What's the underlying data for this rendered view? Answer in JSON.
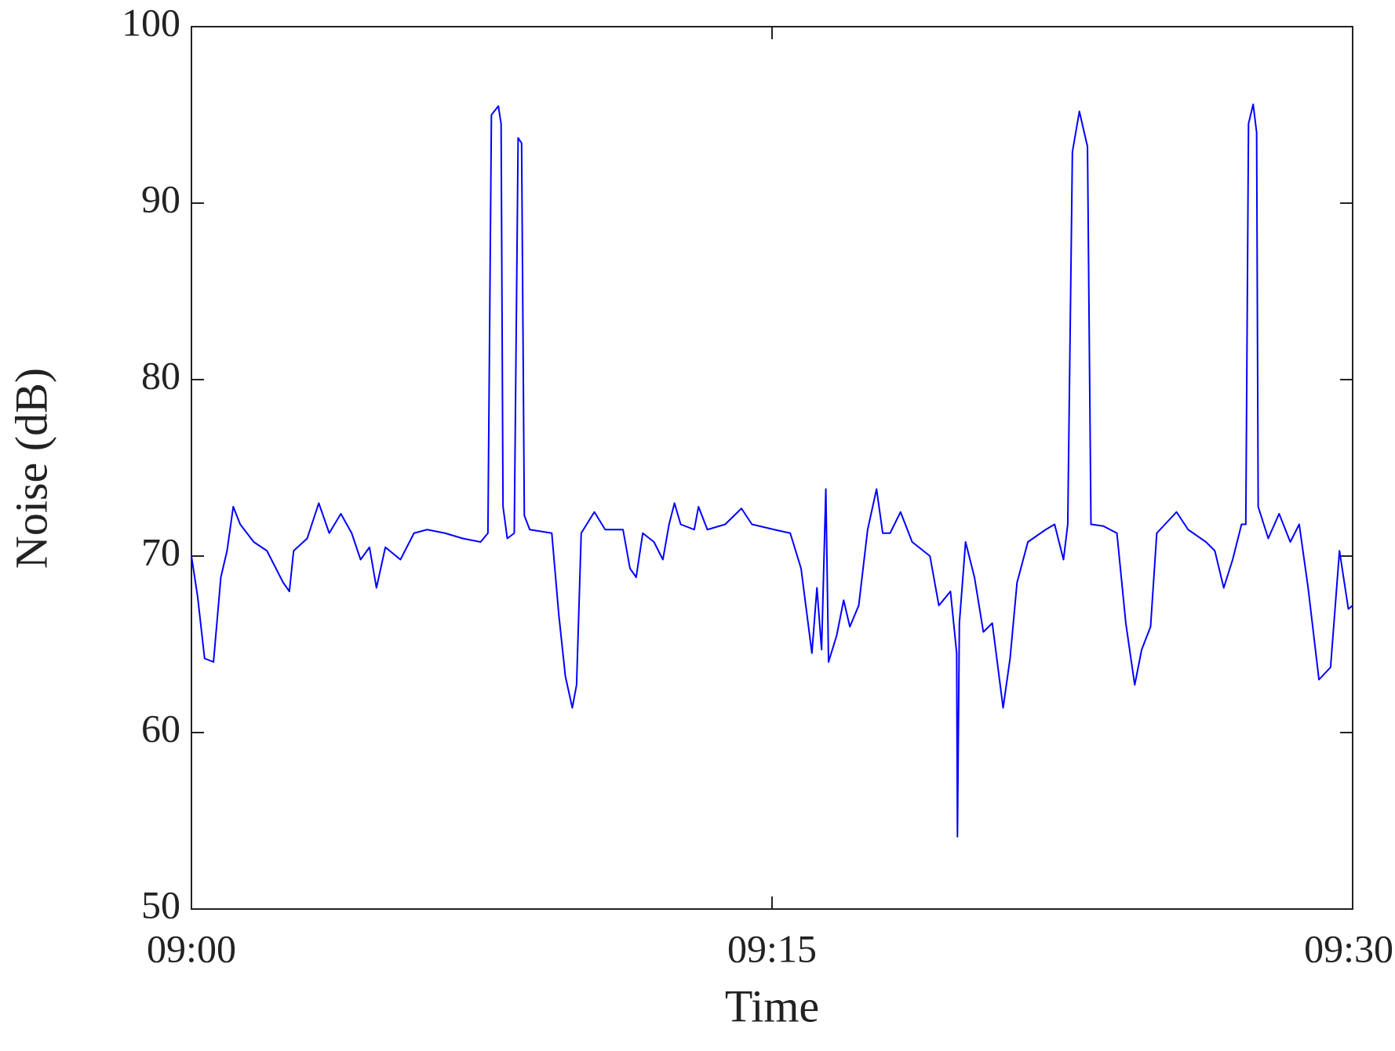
{
  "chart_data": {
    "type": "line",
    "xlabel": "Time",
    "ylabel": "Noise (dB)",
    "xlim": [
      0,
      30
    ],
    "xticks": [
      {
        "value": 0,
        "label": "09:00"
      },
      {
        "value": 15,
        "label": "09:15"
      },
      {
        "value": 30,
        "label": "09:30"
      }
    ],
    "ylim": [
      50,
      100
    ],
    "yticks": [
      50,
      60,
      70,
      80,
      90,
      100
    ],
    "grid": false,
    "series": [
      {
        "color": "#0000ff",
        "x": [
          0,
          0.16,
          0.34,
          0.57,
          0.76,
          0.92,
          1.08,
          1.26,
          1.61,
          1.95,
          2.37,
          2.53,
          2.64,
          2.99,
          3.29,
          3.56,
          3.86,
          4.14,
          4.37,
          4.6,
          4.78,
          5.01,
          5.4,
          5.75,
          6.09,
          6.55,
          7.01,
          7.47,
          7.66,
          7.75,
          7.93,
          8.0,
          8.05,
          8.16,
          8.34,
          8.44,
          8.53,
          8.6,
          8.74,
          9.31,
          9.49,
          9.66,
          9.84,
          9.95,
          10.07,
          10.41,
          10.69,
          11.15,
          11.33,
          11.49,
          11.66,
          11.95,
          12.18,
          12.34,
          12.48,
          12.64,
          12.99,
          13.1,
          13.33,
          13.79,
          14.21,
          14.48,
          15.06,
          15.47,
          15.75,
          16.03,
          16.16,
          16.28,
          16.39,
          16.46,
          16.67,
          16.85,
          17.01,
          17.24,
          17.47,
          17.7,
          17.86,
          18.05,
          18.32,
          18.62,
          19.08,
          19.31,
          19.61,
          19.77,
          19.79,
          19.84,
          20.0,
          20.23,
          20.46,
          20.69,
          20.97,
          21.15,
          21.33,
          21.61,
          22.07,
          22.3,
          22.53,
          22.64,
          22.76,
          22.94,
          23.15,
          23.24,
          23.56,
          23.91,
          24.14,
          24.37,
          24.55,
          24.78,
          24.94,
          25.45,
          25.75,
          26.21,
          26.44,
          26.67,
          26.9,
          27.13,
          27.24,
          27.31,
          27.43,
          27.52,
          27.56,
          27.82,
          28.1,
          28.39,
          28.62,
          28.85,
          29.13,
          29.43,
          29.66,
          29.89,
          30.0
        ],
        "values": [
          70.0,
          67.7,
          64.2,
          64.0,
          68.8,
          70.3,
          72.8,
          71.8,
          70.8,
          70.3,
          68.5,
          68.0,
          70.3,
          71.0,
          73.0,
          71.3,
          72.4,
          71.3,
          69.8,
          70.5,
          68.2,
          70.5,
          69.8,
          71.3,
          71.5,
          71.3,
          71.0,
          70.8,
          71.3,
          95.0,
          95.5,
          94.5,
          72.8,
          71.0,
          71.3,
          93.7,
          93.4,
          72.3,
          71.5,
          71.3,
          66.7,
          63.2,
          61.4,
          62.7,
          71.3,
          72.5,
          71.5,
          71.5,
          69.3,
          68.8,
          71.3,
          70.8,
          69.8,
          71.8,
          73.0,
          71.8,
          71.5,
          72.8,
          71.5,
          71.8,
          72.7,
          71.8,
          71.5,
          71.3,
          69.3,
          64.5,
          68.2,
          64.7,
          73.8,
          64.0,
          65.5,
          67.5,
          66.0,
          67.2,
          71.5,
          73.8,
          71.3,
          71.3,
          72.5,
          70.8,
          70.0,
          67.2,
          68.0,
          64.5,
          54.1,
          66.2,
          70.8,
          68.8,
          65.7,
          66.2,
          61.4,
          64.2,
          68.5,
          70.8,
          71.5,
          71.8,
          69.8,
          71.8,
          92.9,
          95.2,
          93.2,
          71.8,
          71.7,
          71.3,
          66.2,
          62.7,
          64.7,
          66.0,
          71.3,
          72.5,
          71.5,
          70.8,
          70.3,
          68.2,
          69.8,
          71.8,
          71.8,
          94.5,
          95.6,
          94.0,
          72.8,
          71.0,
          72.4,
          70.8,
          71.8,
          68.2,
          63.0,
          63.7,
          70.3,
          67.0,
          67.2
        ]
      }
    ]
  }
}
